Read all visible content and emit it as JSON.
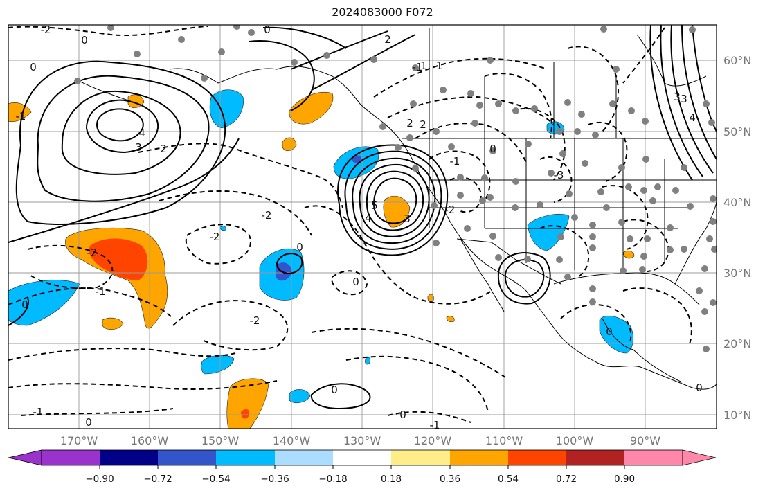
{
  "title": "2024083000 F072",
  "map": {
    "lat_labels": [
      "60°N",
      "50°N",
      "40°N",
      "30°N",
      "20°N",
      "10°N"
    ],
    "lon_labels": [
      "170°W",
      "160°W",
      "150°W",
      "140°W",
      "130°W",
      "120°W",
      "110°W",
      "100°W",
      "90°W"
    ],
    "contour_labels": [
      "-2",
      "0",
      "-1",
      "0",
      "2",
      "3",
      "4",
      "2",
      "0",
      "-2",
      "-2",
      "-1",
      "-2",
      "-1",
      "0",
      "-1",
      "0",
      "5",
      "4",
      "3",
      "2",
      "1",
      "-1",
      "2",
      "-3",
      "3",
      "-2",
      "0",
      "-1",
      "0",
      "0",
      "0",
      "0",
      "-2",
      "-1",
      "0",
      "3",
      "4",
      "0"
    ],
    "station_dot_color": "#808080"
  },
  "colorbar": {
    "colors": [
      "#9933cc",
      "#000088",
      "#3355cc",
      "#00bbff",
      "#aaddff",
      "#ffffff",
      "#ffee88",
      "#ffa500",
      "#ff4400",
      "#b22222",
      "#ff88aa"
    ],
    "tick_labels": [
      "−0.90",
      "−0.72",
      "−0.54",
      "−0.36",
      "−0.18",
      "0.18",
      "0.36",
      "0.54",
      "0.72",
      "0.90"
    ]
  }
}
